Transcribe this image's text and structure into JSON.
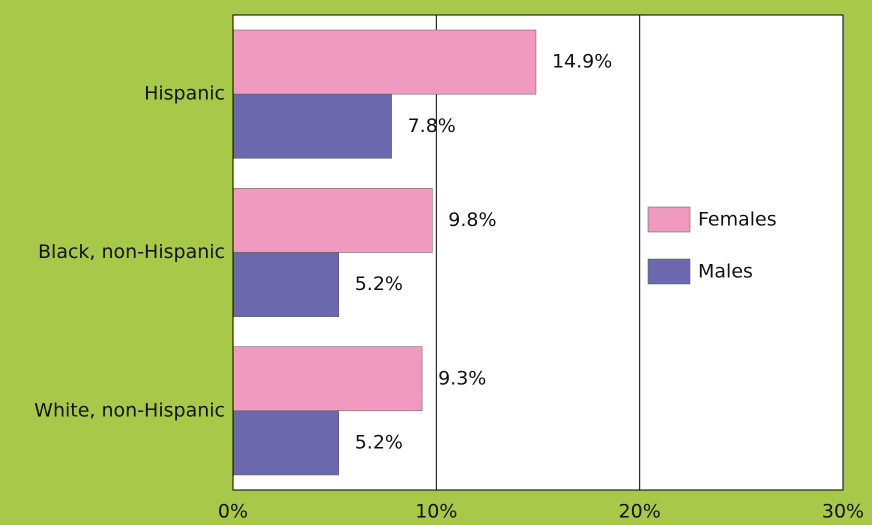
{
  "chart_data": {
    "type": "hbar",
    "categories": [
      "Hispanic",
      "Black, non-Hispanic",
      "White, non-Hispanic"
    ],
    "series": [
      {
        "name": "Females",
        "color": "#f09ac0",
        "values": [
          14.9,
          9.8,
          9.3
        ],
        "value_labels": [
          "14.9%",
          "9.8%",
          "9.3%"
        ]
      },
      {
        "name": "Males",
        "color": "#6b68ae",
        "values": [
          7.8,
          5.2,
          5.2
        ],
        "value_labels": [
          "7.8%",
          "5.2%",
          "5.2%"
        ]
      }
    ],
    "xlim": [
      0,
      30
    ],
    "xticks": [
      {
        "value": 0,
        "label": "0%"
      },
      {
        "value": 10,
        "label": "10%"
      },
      {
        "value": 20,
        "label": "20%"
      },
      {
        "value": 30,
        "label": "30%"
      }
    ],
    "grid": true,
    "legend": "right"
  }
}
